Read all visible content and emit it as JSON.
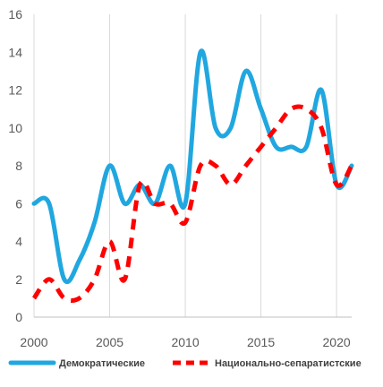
{
  "chart_data": {
    "type": "line",
    "title": "",
    "xlabel": "",
    "ylabel": "",
    "xlim": [
      2000,
      2021
    ],
    "ylim": [
      0,
      16
    ],
    "x_ticks": [
      2000,
      2005,
      2010,
      2015,
      2020
    ],
    "y_ticks": [
      0,
      2,
      4,
      6,
      8,
      10,
      12,
      14,
      16
    ],
    "grid": {
      "vertical": true,
      "horizontal": false
    },
    "legend_position": "bottom",
    "series": [
      {
        "name": "Демократические",
        "color": "#21a7e0",
        "style": "solid",
        "x": [
          2000,
          2001,
          2002,
          2003,
          2004,
          2005,
          2006,
          2007,
          2008,
          2009,
          2010,
          2011,
          2012,
          2013,
          2014,
          2015,
          2016,
          2017,
          2018,
          2019,
          2020,
          2021
        ],
        "values": [
          6,
          6,
          2,
          3,
          5,
          8,
          6,
          7,
          6,
          8,
          6,
          14,
          10,
          10,
          13,
          11,
          9,
          9,
          9,
          12,
          7,
          8
        ]
      },
      {
        "name": "Национально-сепаратистские",
        "color": "#ff0000",
        "style": "dashed",
        "x": [
          2000,
          2001,
          2002,
          2003,
          2004,
          2005,
          2006,
          2007,
          2008,
          2009,
          2010,
          2011,
          2012,
          2013,
          2014,
          2015,
          2016,
          2017,
          2018,
          2019,
          2020,
          2021
        ],
        "values": [
          1,
          2,
          1,
          1,
          2,
          4,
          2,
          7,
          6,
          6,
          5,
          8,
          8,
          7,
          8,
          9,
          10,
          11,
          11,
          10,
          7,
          8
        ]
      }
    ]
  }
}
